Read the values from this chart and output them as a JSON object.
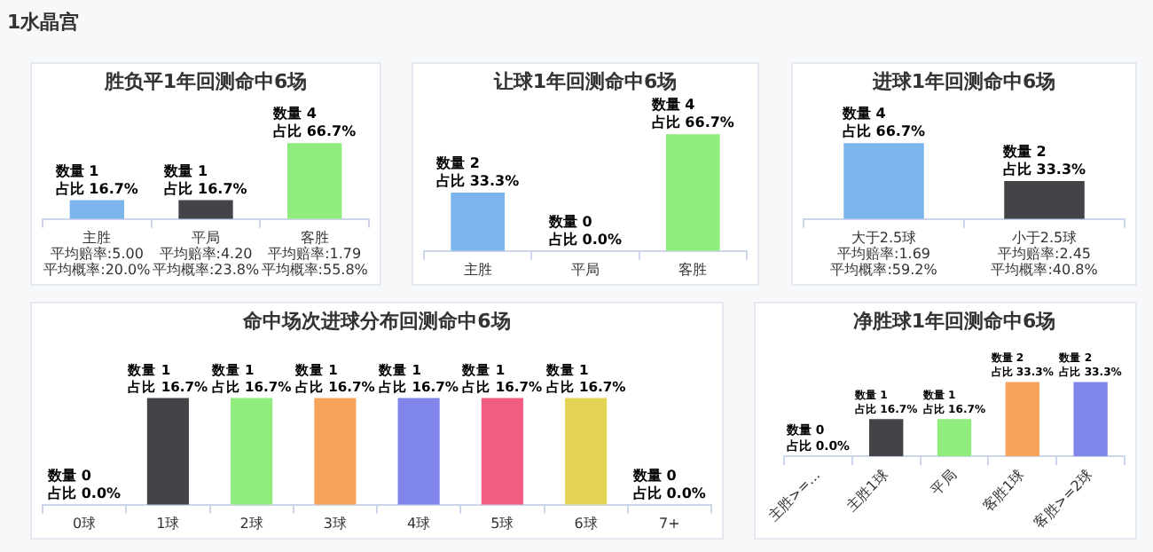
{
  "chart_data": [
    {
      "type": "bar",
      "title": "胜负平1年回测命中6场",
      "annotations": [
        "1水晶宫",
        "平均赔率:5.00",
        "平均概率:20.0%",
        "平均赔率:4.20",
        "平均概率:23.8%",
        "平均赔率:1.79",
        "平均概率:55.8%"
      ],
      "categories": [
        "主胜",
        "平局",
        "客胜"
      ],
      "values": [
        1,
        1,
        4
      ],
      "colors": [
        "#7cb5ec",
        "#434348",
        "#90ed7d"
      ],
      "value_labels": [
        "数量 1\n占比 16.7%",
        "数量 1\n占比 16.7%",
        "数量 4\n占比 66.7%"
      ]
    },
    {
      "type": "bar",
      "title": "让球1年回测命中6场",
      "categories": [
        "主胜",
        "平局",
        "客胜"
      ],
      "values": [
        2,
        0,
        4
      ],
      "colors": [
        "#7cb5ec",
        "#434348",
        "#90ed7d"
      ],
      "value_labels": [
        "数量 2\n占比 33.3%",
        "数量 0\n占比 0.0%",
        "数量 4\n占比 66.7%"
      ]
    },
    {
      "type": "bar",
      "title": "进球1年回测命中6场",
      "annotations": [
        "平均赔率:1.69",
        "平均概率:59.2%",
        "平均赔率:2.45",
        "平均概率:40.8%"
      ],
      "categories": [
        "大于2.5球",
        "小于2.5球"
      ],
      "values": [
        4,
        2
      ],
      "colors": [
        "#7cb5ec",
        "#434348"
      ],
      "value_labels": [
        "数量 4\n占比 66.7%",
        "数量 2\n占比 33.3%"
      ]
    },
    {
      "type": "bar",
      "title": "命中场次进球分布回测命中6场",
      "categories": [
        "0球",
        "1球",
        "2球",
        "3球",
        "4球",
        "5球",
        "6球",
        "7+"
      ],
      "values": [
        0,
        1,
        1,
        1,
        1,
        1,
        1,
        0
      ],
      "colors": [
        "#7cb5ec",
        "#434348",
        "#90ed7d",
        "#f7a35c",
        "#8085e9",
        "#f15c80",
        "#e4d354",
        "#2b908f"
      ],
      "value_labels": [
        "数量 0\n占比 0.0%",
        "数量 1\n占比 16.7%",
        "数量 1\n占比 16.7%",
        "数量 1\n占比 16.7%",
        "数量 1\n占比 16.7%",
        "数量 1\n占比 16.7%",
        "数量 1\n占比 16.7%",
        "数量 0\n占比 0.0%"
      ]
    },
    {
      "type": "bar",
      "title": "净胜球1年回测命中6场",
      "categories": [
        "主胜>=...",
        "主胜1球",
        "平局",
        "客胜1球",
        "客胜>=2球"
      ],
      "values": [
        0,
        1,
        1,
        2,
        2
      ],
      "colors": [
        "#7cb5ec",
        "#434348",
        "#90ed7d",
        "#f7a35c",
        "#8085e9"
      ],
      "value_labels": [
        "数量 0\n占比 0.0%",
        "数量 1\n占比 16.7%",
        "数量 1\n占比 16.7%",
        "数量 2\n占比 33.3%",
        "数量 2\n占比 33.3%"
      ]
    }
  ]
}
